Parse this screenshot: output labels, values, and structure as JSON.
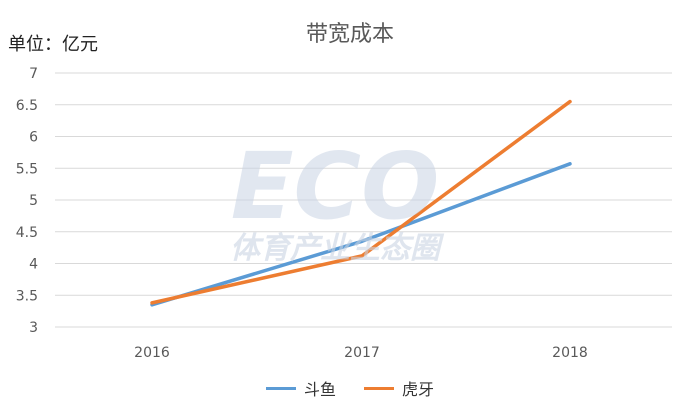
{
  "chart_data": {
    "type": "line",
    "title": "带宽成本",
    "unit": "单位：亿元",
    "categories": [
      "2016",
      "2017",
      "2018"
    ],
    "series": [
      {
        "name": "斗鱼",
        "color": "#5B9BD5",
        "values": [
          3.35,
          4.35,
          5.57
        ]
      },
      {
        "name": "虎牙",
        "color": "#ED7D31",
        "values": [
          3.38,
          4.12,
          6.55
        ]
      }
    ],
    "ylim": [
      3,
      7
    ],
    "yticks": [
      "3",
      "3.5",
      "4",
      "4.5",
      "5",
      "5.5",
      "6",
      "6.5",
      "7"
    ],
    "grid": true,
    "legend": "bottom"
  },
  "watermark": {
    "latin": "ECO",
    "text": "体育产业生态圈",
    "color": "#C9D3E3"
  }
}
